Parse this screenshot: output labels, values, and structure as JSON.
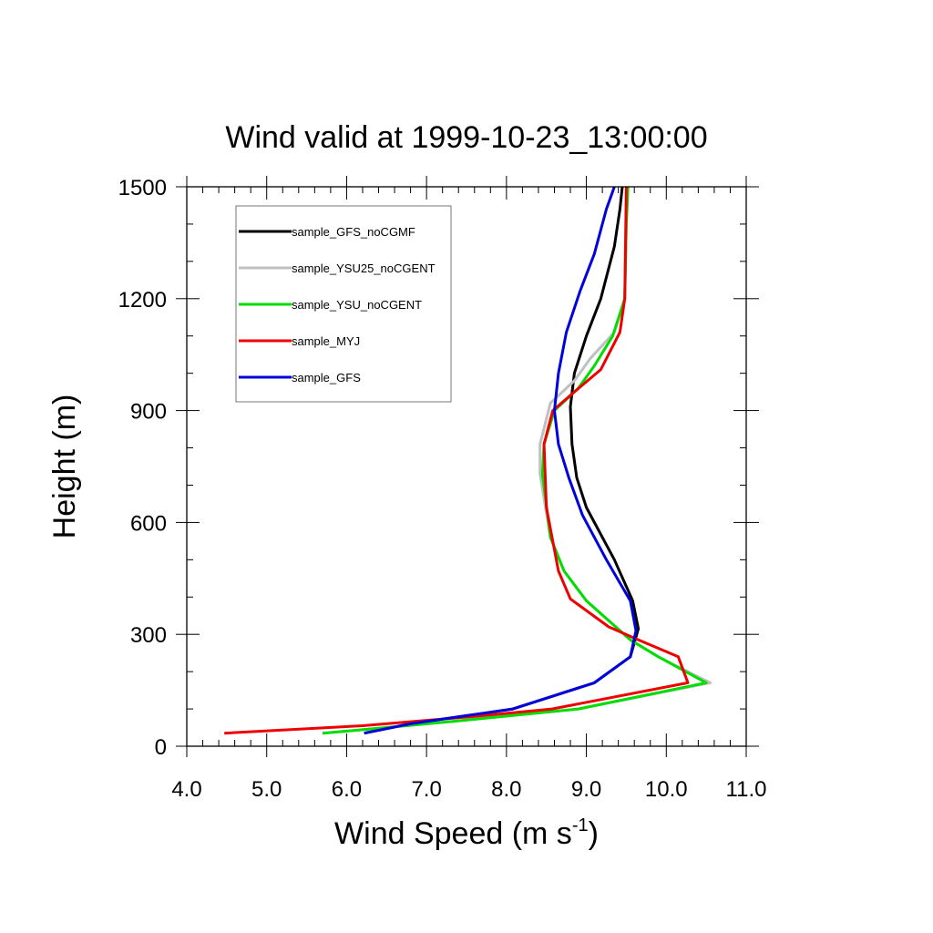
{
  "chart_data": {
    "type": "line",
    "title": "Wind valid at 1999-10-23_13:00:00",
    "xlabel": "Wind Speed (m s",
    "xlabel_superscript": "-1",
    "xlabel_suffix": ")",
    "ylabel": "Height (m)",
    "xlim": [
      4.0,
      11.0
    ],
    "ylim": [
      0,
      1500
    ],
    "xticks": [
      "4.0",
      "5.0",
      "6.0",
      "7.0",
      "8.0",
      "9.0",
      "10.0",
      "11.0"
    ],
    "yticks": [
      "0",
      "300",
      "600",
      "900",
      "1200",
      "1500"
    ],
    "grid": false,
    "legend_position": "top-left",
    "series": [
      {
        "name": "sample_GFS_noCGMF",
        "color": "#000000",
        "x": [
          6.22,
          6.8,
          7.6,
          8.08,
          9.1,
          9.55,
          9.65,
          9.58,
          9.35,
          9.0,
          8.88,
          8.82,
          8.8,
          8.85,
          9.0,
          9.18,
          9.35,
          9.42,
          9.45
        ],
        "y": [
          35,
          60,
          85,
          100,
          170,
          240,
          315,
          390,
          500,
          640,
          720,
          810,
          910,
          1000,
          1100,
          1200,
          1340,
          1440,
          1500
        ]
      },
      {
        "name": "sample_YSU25_noCGENT",
        "color": "#c0c0c0",
        "x": [
          5.7,
          6.5,
          7.5,
          8.9,
          10.55,
          9.9,
          9.55,
          9.0,
          8.72,
          8.55,
          8.42,
          8.42,
          8.55,
          8.85,
          9.05,
          9.35,
          9.48,
          9.5,
          9.52
        ],
        "y": [
          35,
          50,
          70,
          100,
          170,
          240,
          285,
          390,
          470,
          560,
          730,
          810,
          920,
          980,
          1040,
          1110,
          1200,
          1400,
          1500
        ]
      },
      {
        "name": "sample_YSU_noCGENT",
        "color": "#00dd00",
        "x": [
          5.7,
          6.5,
          7.5,
          8.9,
          10.5,
          9.9,
          9.55,
          9.0,
          8.72,
          8.55,
          8.45,
          8.47,
          8.6,
          8.9,
          9.1,
          9.33,
          9.48,
          9.5,
          9.52
        ],
        "y": [
          35,
          50,
          70,
          100,
          170,
          240,
          285,
          390,
          470,
          560,
          730,
          810,
          900,
          960,
          1020,
          1100,
          1200,
          1400,
          1500
        ]
      },
      {
        "name": "sample_MYJ",
        "color": "#ee0000",
        "x": [
          4.47,
          6.2,
          7.6,
          8.57,
          10.27,
          10.15,
          9.65,
          9.28,
          8.8,
          8.65,
          8.5,
          8.47,
          8.58,
          8.85,
          9.18,
          9.42,
          9.48,
          9.5
        ],
        "y": [
          35,
          55,
          80,
          100,
          170,
          240,
          285,
          320,
          395,
          470,
          640,
          810,
          900,
          950,
          1010,
          1110,
          1200,
          1500
        ]
      },
      {
        "name": "sample_GFS",
        "color": "#0000dd",
        "x": [
          6.22,
          6.8,
          7.6,
          8.08,
          9.1,
          9.55,
          9.62,
          9.55,
          9.25,
          8.95,
          8.78,
          8.65,
          8.6,
          8.65,
          8.75,
          8.92,
          9.1,
          9.25,
          9.35
        ],
        "y": [
          35,
          60,
          85,
          100,
          170,
          240,
          310,
          390,
          500,
          620,
          720,
          810,
          900,
          1000,
          1110,
          1220,
          1320,
          1440,
          1500
        ]
      }
    ]
  }
}
